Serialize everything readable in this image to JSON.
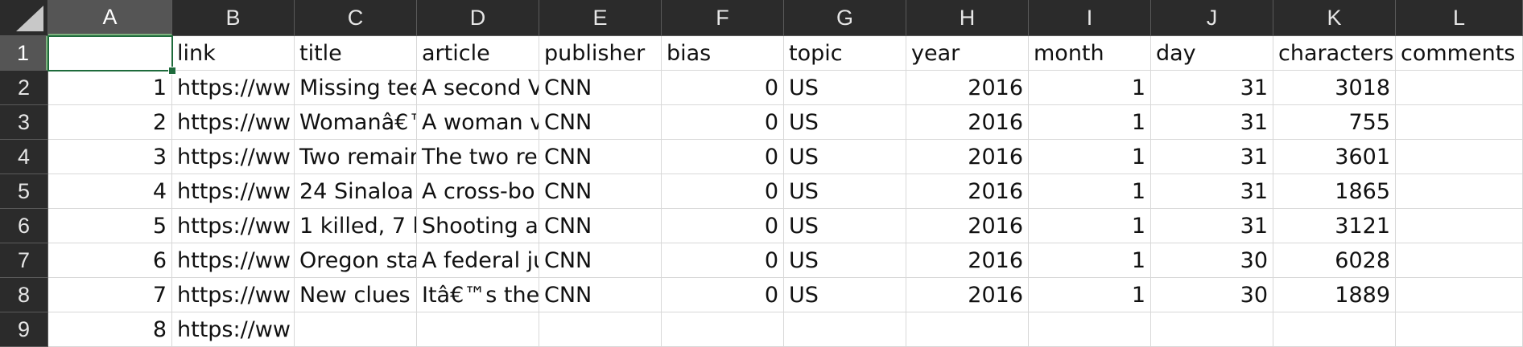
{
  "columns": [
    "A",
    "B",
    "C",
    "D",
    "E",
    "F",
    "G",
    "H",
    "I",
    "J",
    "K",
    "L"
  ],
  "selected_column": "A",
  "selected_row": "1",
  "rows": [
    {
      "num": "1",
      "cells": [
        "",
        "link",
        "title",
        "article",
        "publisher",
        "bias",
        "topic",
        "year",
        "month",
        "day",
        "characters",
        "comments"
      ]
    },
    {
      "num": "2",
      "cells": [
        "1",
        "https://ww",
        "Missing tee",
        "A second V",
        "CNN",
        "0",
        "US",
        "2016",
        "1",
        "31",
        "3018",
        ""
      ]
    },
    {
      "num": "3",
      "cells": [
        "2",
        "https://ww",
        "Womanâ€™",
        "A woman v",
        "CNN",
        "0",
        "US",
        "2016",
        "1",
        "31",
        "755",
        ""
      ]
    },
    {
      "num": "4",
      "cells": [
        "3",
        "https://ww",
        "Two remair",
        "The two re",
        "CNN",
        "0",
        "US",
        "2016",
        "1",
        "31",
        "3601",
        ""
      ]
    },
    {
      "num": "5",
      "cells": [
        "4",
        "https://ww",
        "24 Sinaloa",
        "A cross-bo",
        "CNN",
        "0",
        "US",
        "2016",
        "1",
        "31",
        "1865",
        ""
      ]
    },
    {
      "num": "6",
      "cells": [
        "5",
        "https://ww",
        "1 killed, 7 h",
        "Shooting a",
        "CNN",
        "0",
        "US",
        "2016",
        "1",
        "31",
        "3121",
        ""
      ]
    },
    {
      "num": "7",
      "cells": [
        "6",
        "https://ww",
        "Oregon sta",
        "A federal ju",
        "CNN",
        "0",
        "US",
        "2016",
        "1",
        "30",
        "6028",
        ""
      ]
    },
    {
      "num": "8",
      "cells": [
        "7",
        "https://ww",
        "New clues a",
        "Itâ€™s the",
        "CNN",
        "0",
        "US",
        "2016",
        "1",
        "30",
        "1889",
        ""
      ]
    },
    {
      "num": "9",
      "cells": [
        "8",
        "https://ww",
        "",
        "",
        "",
        "",
        "",
        "",
        "",
        "",
        "",
        ""
      ]
    }
  ],
  "colors": {
    "header_bg": "#2b2b2b",
    "selected_header_bg": "#555555",
    "active_border": "#1e6b3c",
    "grid": "#d8d8d8"
  },
  "icons": {
    "corner": "select-all-triangle-icon"
  }
}
